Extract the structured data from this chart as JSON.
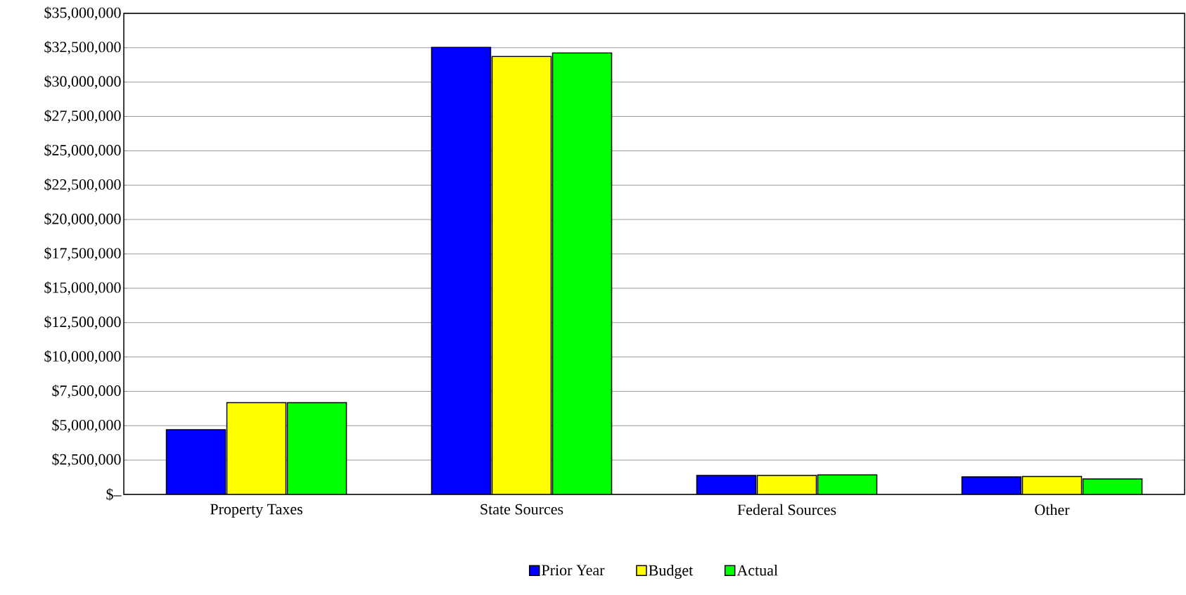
{
  "chart_data": {
    "type": "bar",
    "categories": [
      "Property Taxes",
      "State Sources",
      "Federal Sources",
      "Other"
    ],
    "series": [
      {
        "name": "Prior Year",
        "color": "#0000ff",
        "values": [
          4710000,
          32530000,
          1380000,
          1280000
        ]
      },
      {
        "name": "Budget",
        "color": "#ffff00",
        "values": [
          6680000,
          31870000,
          1380000,
          1310000
        ]
      },
      {
        "name": "Actual",
        "color": "#00ff00",
        "values": [
          6680000,
          32120000,
          1420000,
          1120000
        ]
      }
    ],
    "ylim": [
      0,
      35000000
    ],
    "yticks": [
      {
        "value": 0,
        "label": "$–"
      },
      {
        "value": 2500000,
        "label": "$2,500,000"
      },
      {
        "value": 5000000,
        "label": "$5,000,000"
      },
      {
        "value": 7500000,
        "label": "$7,500,000"
      },
      {
        "value": 10000000,
        "label": "$10,000,000"
      },
      {
        "value": 12500000,
        "label": "$12,500,000"
      },
      {
        "value": 15000000,
        "label": "$15,000,000"
      },
      {
        "value": 17500000,
        "label": "$17,500,000"
      },
      {
        "value": 20000000,
        "label": "$20,000,000"
      },
      {
        "value": 22500000,
        "label": "$22,500,000"
      },
      {
        "value": 25000000,
        "label": "$25,000,000"
      },
      {
        "value": 27500000,
        "label": "$27,500,000"
      },
      {
        "value": 30000000,
        "label": "$30,000,000"
      },
      {
        "value": 32500000,
        "label": "$32,500,000"
      },
      {
        "value": 35000000,
        "label": "$35,000,000"
      }
    ],
    "grid": "y",
    "legend": "bottom"
  }
}
